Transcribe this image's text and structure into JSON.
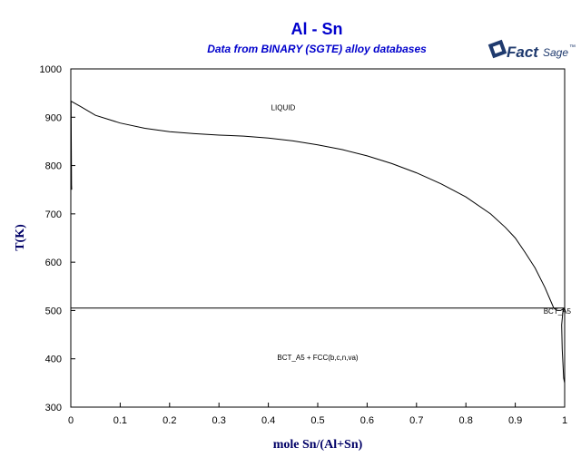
{
  "chart_data": {
    "type": "line",
    "title": "Al - Sn",
    "subtitle": "Data from BINARY (SGTE) alloy databases",
    "xlabel": "mole Sn/(Al+Sn)",
    "ylabel": "T(K)",
    "xlim": [
      0,
      1
    ],
    "ylim": [
      300,
      1000
    ],
    "x_ticks": [
      "0",
      "0.1",
      "0.2",
      "0.3",
      "0.4",
      "0.5",
      "0.6",
      "0.7",
      "0.8",
      "0.9",
      "1"
    ],
    "y_ticks": [
      "300",
      "400",
      "500",
      "600",
      "700",
      "800",
      "900",
      "1000"
    ],
    "grid": false,
    "legend": "none",
    "series": [
      {
        "points": [
          [
            0,
            933.5
          ],
          [
            0.02,
            922
          ],
          [
            0.05,
            904
          ],
          [
            0.1,
            888
          ],
          [
            0.15,
            877
          ],
          [
            0.2,
            870
          ],
          [
            0.25,
            866
          ],
          [
            0.3,
            863
          ],
          [
            0.35,
            861
          ],
          [
            0.4,
            857
          ],
          [
            0.45,
            851
          ],
          [
            0.5,
            843
          ],
          [
            0.55,
            833
          ],
          [
            0.6,
            820
          ],
          [
            0.65,
            804
          ],
          [
            0.7,
            785
          ],
          [
            0.75,
            762
          ],
          [
            0.8,
            735
          ],
          [
            0.85,
            700
          ],
          [
            0.88,
            672
          ],
          [
            0.9,
            650
          ],
          [
            0.92,
            620
          ],
          [
            0.94,
            588
          ],
          [
            0.96,
            548
          ],
          [
            0.975,
            512
          ],
          [
            0.978,
            505
          ]
        ]
      },
      {
        "points": [
          [
            0,
            505
          ],
          [
            1,
            505
          ]
        ]
      },
      {
        "points": [
          [
            0.0005,
            933.5
          ],
          [
            0.001,
            860
          ],
          [
            0.0015,
            760
          ],
          [
            0.0018,
            750
          ]
        ]
      },
      {
        "points": [
          [
            0.997,
            505
          ],
          [
            0.994,
            470
          ],
          [
            0.995,
            420
          ],
          [
            0.998,
            360
          ],
          [
            1,
            350
          ]
        ]
      },
      {
        "points": [
          [
            0.978,
            505
          ],
          [
            0.985,
            500
          ],
          [
            0.992,
            500
          ],
          [
            1,
            505
          ]
        ]
      }
    ],
    "annotations": [
      {
        "text": "LIQUID",
        "x": 0.43,
        "y": 915
      },
      {
        "text": "BCT_A5 + FCC(b,c,n,va)",
        "x": 0.5,
        "y": 398
      },
      {
        "text": "BCT_A5",
        "x": 0.985,
        "y": 493
      }
    ],
    "colors": {
      "title": "#0000cc",
      "axis_label": "#000066",
      "curves": "#000000",
      "logo": "#1f3a6e"
    }
  },
  "logo": {
    "name": "factsage-logo",
    "main": "Fact",
    "secondary": "Sage",
    "mark": "™"
  }
}
